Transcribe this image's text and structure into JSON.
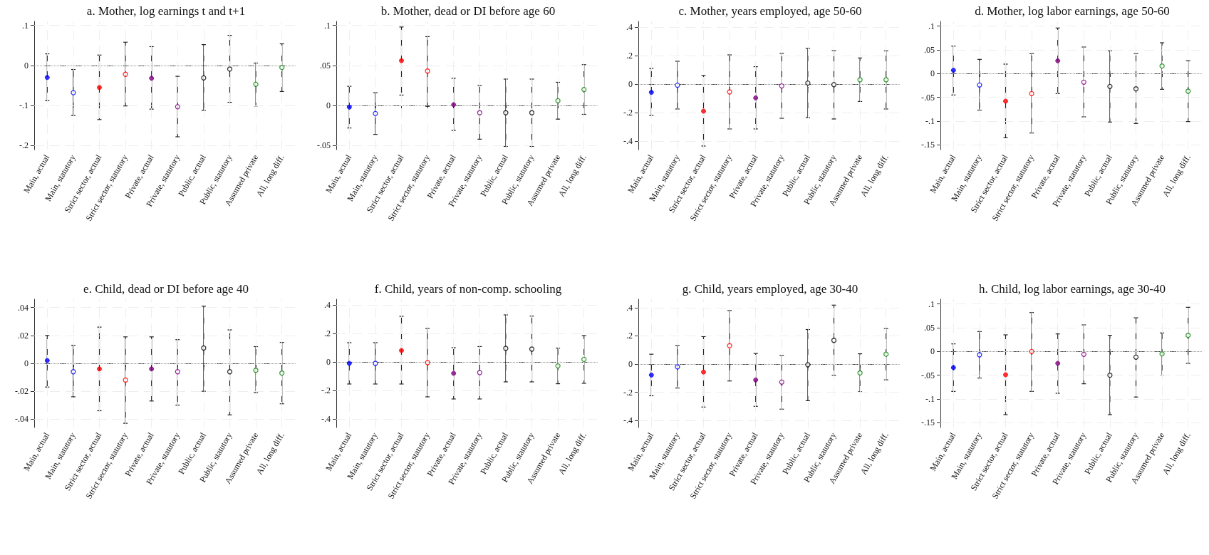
{
  "chart_data": [
    {
      "type": "scatter",
      "title": "a. Mother, log earnings t and t+1",
      "categories": [
        "Main, actual",
        "Main, statutory",
        "Strict sector, actual",
        "Strict sector, statutory",
        "Private, actual",
        "Private, statutory",
        "Public, actual",
        "Public, statutory",
        "Assumed private",
        "All, long diff."
      ],
      "ylim": [
        -0.21,
        0.11
      ],
      "yticks": [
        {
          "value": -0.2,
          "label": "-.2"
        },
        {
          "value": -0.1,
          "label": "-.1"
        },
        {
          "value": 0,
          "label": "0"
        },
        {
          "value": 0.1,
          "label": ".1"
        }
      ],
      "grid": true,
      "marker": "circle",
      "ref_lines": [
        {
          "axis": "y",
          "value": 0,
          "color": "#999999",
          "line_style": "dotted"
        }
      ],
      "series": [
        {
          "type": "scatter",
          "colors": [
            "#0000ff",
            null,
            "#ff0000",
            null,
            "#800080",
            null,
            null,
            null,
            null,
            null
          ],
          "values": [
            -0.03,
            null,
            -0.055,
            null,
            -0.032,
            null,
            null,
            null,
            null,
            null
          ],
          "errors": [
            [
              -0.088,
              0.029
            ],
            null,
            [
              -0.135,
              0.026
            ],
            null,
            [
              -0.109,
              0.047
            ],
            null,
            null,
            null,
            null,
            null
          ]
        },
        {
          "type": "scatter",
          "colors": [
            null,
            "#0000ff",
            null,
            "#ff0000",
            null,
            "#800080",
            "#000000",
            "#000000",
            "#008000",
            "#008000"
          ],
          "values": [
            null,
            -0.068,
            null,
            -0.022,
            null,
            -0.103,
            -0.031,
            -0.009,
            -0.047,
            -0.005
          ],
          "errors": [
            null,
            [
              -0.125,
              -0.01
            ],
            null,
            [
              -0.101,
              0.058
            ],
            null,
            [
              -0.178,
              -0.027
            ],
            [
              -0.112,
              0.052
            ],
            [
              -0.092,
              0.075
            ],
            [
              -0.101,
              0.006
            ],
            [
              -0.065,
              0.054
            ]
          ]
        }
      ]
    },
    {
      "type": "scatter",
      "title": "b. Mother, dead or DI before age 60",
      "categories": [
        "Main, actual",
        "Main, statutory",
        "Strict sector, actual",
        "Strict sector, statutory",
        "Private, actual",
        "Private, statutory",
        "Public, actual",
        "Public, statutory",
        "Assumed private",
        "All, long diff."
      ],
      "ylim": [
        -0.055,
        0.105
      ],
      "yticks": [
        {
          "value": -0.05,
          "label": "-.05"
        },
        {
          "value": 0,
          "label": "0"
        },
        {
          "value": 0.05,
          "label": ".05"
        },
        {
          "value": 0.1,
          "label": ".1"
        }
      ],
      "grid": true,
      "marker": "circle",
      "ref_lines": [
        {
          "axis": "y",
          "value": 0,
          "color": "#999999",
          "line_style": "dotted"
        }
      ],
      "series": [
        {
          "type": "scatter",
          "colors": [
            "#0000ff",
            null,
            "#ff0000",
            null,
            "#800080",
            null,
            null,
            null,
            null,
            null
          ],
          "values": [
            -0.002,
            null,
            0.056,
            null,
            0.001,
            null,
            null,
            null,
            null,
            null
          ],
          "errors": [
            [
              -0.028,
              0.024
            ],
            null,
            [
              0.013,
              0.098
            ],
            null,
            [
              -0.031,
              0.034
            ],
            null,
            null,
            null,
            null,
            null
          ]
        },
        {
          "type": "scatter",
          "colors": [
            null,
            "#0000ff",
            null,
            "#ff0000",
            null,
            "#800080",
            "#000000",
            "#000000",
            "#008000",
            "#008000"
          ],
          "values": [
            null,
            -0.01,
            null,
            0.043,
            null,
            -0.009,
            -0.009,
            -0.009,
            0.006,
            0.02
          ],
          "errors": [
            null,
            [
              -0.036,
              0.016
            ],
            null,
            [
              -0.001,
              0.086
            ],
            null,
            [
              -0.042,
              0.025
            ],
            [
              -0.051,
              0.033
            ],
            [
              -0.051,
              0.033
            ],
            [
              -0.017,
              0.029
            ],
            [
              -0.011,
              0.051
            ]
          ]
        }
      ]
    },
    {
      "type": "scatter",
      "title": "c. Mother, years employed, age 50-60",
      "categories": [
        "Main, actual",
        "Main, statutory",
        "Strict sector, actual",
        "Strict sector, statutory",
        "Private, actual",
        "Private, statutory",
        "Public, actual",
        "Public, statutory",
        "Assumed private",
        "All, long diff."
      ],
      "ylim": [
        -0.46,
        0.44
      ],
      "yticks": [
        {
          "value": -0.4,
          "label": "-.4"
        },
        {
          "value": -0.2,
          "label": "-.2"
        },
        {
          "value": 0,
          "label": "0"
        },
        {
          "value": 0.2,
          "label": ".2"
        },
        {
          "value": 0.4,
          "label": ".4"
        }
      ],
      "grid": true,
      "marker": "circle",
      "ref_lines": [
        {
          "axis": "y",
          "value": 0,
          "color": "#999999",
          "line_style": "dotted"
        }
      ],
      "series": [
        {
          "type": "scatter",
          "colors": [
            "#0000ff",
            null,
            "#ff0000",
            null,
            "#800080",
            null,
            null,
            null,
            null,
            null
          ],
          "values": [
            -0.058,
            null,
            -0.19,
            null,
            -0.097,
            null,
            null,
            null,
            null,
            null
          ],
          "errors": [
            [
              -0.22,
              0.11
            ],
            null,
            [
              -0.435,
              0.06
            ],
            null,
            [
              -0.315,
              0.122
            ],
            null,
            null,
            null,
            null,
            null
          ]
        },
        {
          "type": "scatter",
          "colors": [
            null,
            "#0000ff",
            null,
            "#ff0000",
            null,
            "#800080",
            "#000000",
            "#000000",
            "#008000",
            "#008000"
          ],
          "values": [
            null,
            -0.008,
            null,
            -0.055,
            null,
            -0.013,
            0.007,
            -0.004,
            0.03,
            0.03
          ],
          "errors": [
            null,
            [
              -0.175,
              0.16
            ],
            null,
            [
              -0.315,
              0.205
            ],
            null,
            [
              -0.24,
              0.215
            ],
            [
              -0.235,
              0.25
            ],
            [
              -0.245,
              0.235
            ],
            [
              -0.122,
              0.183
            ],
            [
              -0.175,
              0.233
            ]
          ]
        }
      ]
    },
    {
      "type": "scatter",
      "title": "d. Mother, log labor earnings, age 50-60",
      "categories": [
        "Main, actual",
        "Main, statutory",
        "Strict sector, actual",
        "Strict sector, statutory",
        "Private, actual",
        "Private, statutory",
        "Public, actual",
        "Public, statutory",
        "Assumed private",
        "All, long diff."
      ],
      "ylim": [
        -0.16,
        0.11
      ],
      "yticks": [
        {
          "value": -0.15,
          "label": "-.15"
        },
        {
          "value": -0.1,
          "label": "-.1"
        },
        {
          "value": -0.05,
          "label": "-.05"
        },
        {
          "value": 0,
          "label": "0"
        },
        {
          "value": 0.05,
          "label": ".05"
        },
        {
          "value": 0.1,
          "label": ".1"
        }
      ],
      "grid": true,
      "marker": "circle",
      "ref_lines": [
        {
          "axis": "y",
          "value": 0,
          "color": "#999999",
          "line_style": "dotted"
        }
      ],
      "series": [
        {
          "type": "scatter",
          "colors": [
            "#0000ff",
            null,
            "#ff0000",
            null,
            "#800080",
            null,
            null,
            null,
            null,
            null
          ],
          "values": [
            0.007,
            null,
            -0.058,
            null,
            0.027,
            null,
            null,
            null,
            null,
            null
          ],
          "errors": [
            [
              -0.045,
              0.058
            ],
            null,
            [
              -0.135,
              0.02
            ],
            null,
            [
              -0.042,
              0.096
            ],
            null,
            null,
            null,
            null,
            null
          ]
        },
        {
          "type": "scatter",
          "colors": [
            null,
            "#0000ff",
            null,
            "#ff0000",
            null,
            "#800080",
            "#000000",
            "#000000",
            "#008000",
            "#008000"
          ],
          "values": [
            null,
            -0.024,
            null,
            -0.042,
            null,
            -0.018,
            -0.027,
            -0.032,
            0.016,
            -0.037
          ],
          "errors": [
            null,
            [
              -0.077,
              0.03
            ],
            null,
            [
              -0.125,
              0.042
            ],
            null,
            [
              -0.091,
              0.056
            ],
            [
              -0.102,
              0.048
            ],
            [
              -0.105,
              0.042
            ],
            [
              -0.033,
              0.065
            ],
            [
              -0.101,
              0.027
            ]
          ]
        }
      ]
    },
    {
      "type": "scatter",
      "title": "e. Child, dead or DI before age 40",
      "categories": [
        "Main, actual",
        "Main, statutory",
        "Strict sector, actual",
        "Strict sector, statutory",
        "Private, actual",
        "Private, statutory",
        "Public, actual",
        "Public, statutory",
        "Assumed private",
        "All, long diff."
      ],
      "ylim": [
        -0.046,
        0.046
      ],
      "yticks": [
        {
          "value": -0.04,
          "label": "-.04"
        },
        {
          "value": -0.02,
          "label": "-.02"
        },
        {
          "value": 0,
          "label": "0"
        },
        {
          "value": 0.02,
          "label": ".02"
        },
        {
          "value": 0.04,
          "label": ".04"
        }
      ],
      "grid": true,
      "marker": "circle",
      "ref_lines": [
        {
          "axis": "y",
          "value": 0,
          "color": "#999999",
          "line_style": "dotted"
        }
      ],
      "series": [
        {
          "type": "scatter",
          "colors": [
            "#0000ff",
            null,
            "#ff0000",
            null,
            "#800080",
            null,
            null,
            null,
            null,
            null
          ],
          "values": [
            0.002,
            null,
            -0.004,
            null,
            -0.004,
            null,
            null,
            null,
            null,
            null
          ],
          "errors": [
            [
              -0.017,
              0.02
            ],
            null,
            [
              -0.034,
              0.026
            ],
            null,
            [
              -0.027,
              0.019
            ],
            null,
            null,
            null,
            null,
            null
          ]
        },
        {
          "type": "scatter",
          "colors": [
            null,
            "#0000ff",
            null,
            "#ff0000",
            null,
            "#800080",
            "#000000",
            "#000000",
            "#008000",
            "#008000"
          ],
          "values": [
            null,
            -0.006,
            null,
            -0.012,
            null,
            -0.006,
            0.011,
            -0.006,
            -0.005,
            -0.007
          ],
          "errors": [
            null,
            [
              -0.024,
              0.013
            ],
            null,
            [
              -0.043,
              0.019
            ],
            null,
            [
              -0.03,
              0.017
            ],
            [
              -0.02,
              0.041
            ],
            [
              -0.037,
              0.024
            ],
            [
              -0.021,
              0.012
            ],
            [
              -0.029,
              0.015
            ]
          ]
        }
      ]
    },
    {
      "type": "scatter",
      "title": "f. Child, years of non-comp. schooling",
      "categories": [
        "Main, actual",
        "Main, statutory",
        "Strict sector, actual",
        "Strict sector, statutory",
        "Private, actual",
        "Private, statutory",
        "Public, actual",
        "Public, statutory",
        "Assumed private",
        "All, long diff."
      ],
      "ylim": [
        -0.46,
        0.44
      ],
      "yticks": [
        {
          "value": -0.4,
          "label": "-.4"
        },
        {
          "value": -0.2,
          "label": "-.2"
        },
        {
          "value": 0,
          "label": "0"
        },
        {
          "value": 0.2,
          "label": ".2"
        },
        {
          "value": 0.4,
          "label": ".4"
        }
      ],
      "grid": true,
      "marker": "circle",
      "ref_lines": [
        {
          "axis": "y",
          "value": 0,
          "color": "#999999",
          "line_style": "dotted"
        }
      ],
      "series": [
        {
          "type": "scatter",
          "colors": [
            "#0000ff",
            null,
            "#ff0000",
            null,
            "#800080",
            null,
            null,
            null,
            null,
            null
          ],
          "values": [
            -0.01,
            null,
            0.08,
            null,
            -0.08,
            null,
            null,
            null,
            null,
            null
          ],
          "errors": [
            [
              -0.155,
              0.135
            ],
            null,
            [
              -0.155,
              0.32
            ],
            null,
            [
              -0.26,
              0.1
            ],
            null,
            null,
            null,
            null,
            null
          ]
        },
        {
          "type": "scatter",
          "colors": [
            null,
            "#0000ff",
            null,
            "#ff0000",
            null,
            "#800080",
            "#000000",
            "#000000",
            "#008000",
            "#008000"
          ],
          "values": [
            null,
            -0.01,
            null,
            -0.005,
            null,
            -0.075,
            0.095,
            0.09,
            -0.028,
            0.018
          ],
          "errors": [
            null,
            [
              -0.155,
              0.135
            ],
            null,
            [
              -0.245,
              0.235
            ],
            null,
            [
              -0.26,
              0.108
            ],
            [
              -0.14,
              0.33
            ],
            [
              -0.14,
              0.322
            ],
            [
              -0.153,
              0.097
            ],
            [
              -0.15,
              0.185
            ]
          ]
        }
      ]
    },
    {
      "type": "scatter",
      "title": "g. Child, years employed, age 30-40",
      "categories": [
        "Main, actual",
        "Main, statutory",
        "Strict sector, actual",
        "Strict sector, statutory",
        "Private, actual",
        "Private, statutory",
        "Public, actual",
        "Public, statutory",
        "Assumed private",
        "All, long diff."
      ],
      "ylim": [
        -0.45,
        0.46
      ],
      "yticks": [
        {
          "value": -0.4,
          "label": "-.4"
        },
        {
          "value": -0.2,
          "label": "-.2"
        },
        {
          "value": 0,
          "label": "0"
        },
        {
          "value": 0.2,
          "label": ".2"
        },
        {
          "value": 0.4,
          "label": ".4"
        }
      ],
      "grid": true,
      "marker": "circle",
      "ref_lines": [
        {
          "axis": "y",
          "value": 0,
          "color": "#999999",
          "line_style": "dotted"
        }
      ],
      "series": [
        {
          "type": "scatter",
          "colors": [
            "#0000ff",
            null,
            "#ff0000",
            null,
            "#800080",
            null,
            null,
            null,
            null,
            null
          ],
          "values": [
            -0.078,
            null,
            -0.057,
            null,
            -0.113,
            null,
            null,
            null,
            null,
            null
          ],
          "errors": [
            [
              -0.225,
              0.07
            ],
            null,
            [
              -0.305,
              0.195
            ],
            null,
            [
              -0.3,
              0.075
            ],
            null,
            null,
            null,
            null,
            null
          ]
        },
        {
          "type": "scatter",
          "colors": [
            null,
            "#0000ff",
            null,
            "#ff0000",
            null,
            "#800080",
            "#000000",
            "#000000",
            "#008000",
            "#008000"
          ],
          "values": [
            null,
            -0.02,
            null,
            0.13,
            null,
            -0.128,
            -0.005,
            0.168,
            -0.063,
            0.07
          ],
          "errors": [
            null,
            [
              -0.17,
              0.132
            ],
            null,
            [
              -0.12,
              0.38
            ],
            null,
            [
              -0.32,
              0.062
            ],
            [
              -0.26,
              0.245
            ],
            [
              -0.08,
              0.418
            ],
            [
              -0.197,
              0.073
            ],
            [
              -0.112,
              0.252
            ]
          ]
        }
      ]
    },
    {
      "type": "scatter",
      "title": "h. Child, log labor earnings, age 30-40",
      "categories": [
        "Main, actual",
        "Main, statutory",
        "Strict sector, actual",
        "Strict sector, statutory",
        "Private, actual",
        "Private, statutory",
        "Public, actual",
        "Public, statutory",
        "Assumed private",
        "All, long diff."
      ],
      "ylim": [
        -0.16,
        0.11
      ],
      "yticks": [
        {
          "value": -0.15,
          "label": "-.15"
        },
        {
          "value": -0.1,
          "label": "-.1"
        },
        {
          "value": -0.05,
          "label": "-.05"
        },
        {
          "value": 0,
          "label": "0"
        },
        {
          "value": 0.05,
          "label": ".05"
        },
        {
          "value": 0.1,
          "label": ".1"
        }
      ],
      "grid": true,
      "marker": "circle",
      "ref_lines": [
        {
          "axis": "y",
          "value": 0,
          "color": "#999999",
          "line_style": "dotted"
        }
      ],
      "series": [
        {
          "type": "scatter",
          "colors": [
            "#0000ff",
            null,
            "#ff0000",
            null,
            "#800080",
            null,
            null,
            null,
            null,
            null
          ],
          "values": [
            -0.034,
            null,
            -0.049,
            null,
            -0.025,
            null,
            null,
            null,
            null,
            null
          ],
          "errors": [
            [
              -0.084,
              0.016
            ],
            null,
            [
              -0.133,
              0.035
            ],
            null,
            [
              -0.088,
              0.037
            ],
            null,
            null,
            null,
            null,
            null
          ]
        },
        {
          "type": "scatter",
          "colors": [
            null,
            "#0000ff",
            null,
            "#ff0000",
            null,
            "#800080",
            "#000000",
            "#000000",
            "#008000",
            "#008000"
          ],
          "values": [
            null,
            -0.007,
            null,
            0,
            null,
            -0.006,
            -0.05,
            -0.012,
            -0.005,
            0.034
          ],
          "errors": [
            null,
            [
              -0.056,
              0.042
            ],
            null,
            [
              -0.084,
              0.082
            ],
            null,
            [
              -0.068,
              0.056
            ],
            [
              -0.133,
              0.034
            ],
            [
              -0.096,
              0.071
            ],
            [
              -0.05,
              0.039
            ],
            [
              -0.025,
              0.093
            ]
          ]
        }
      ]
    }
  ]
}
